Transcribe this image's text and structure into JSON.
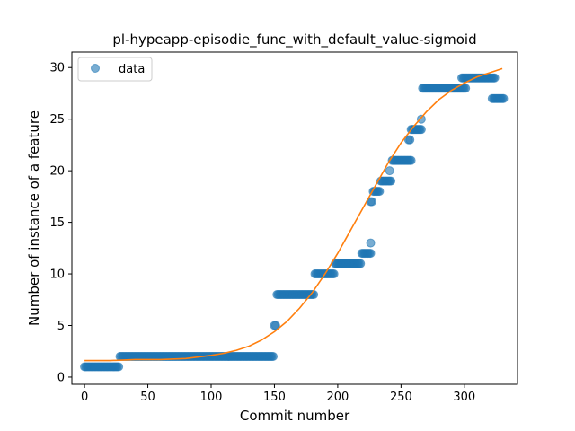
{
  "chart_data": {
    "type": "scatter",
    "title": "pl-hypeapp-episodie_func_with_default_value-sigmoid",
    "xlabel": "Commit number",
    "ylabel": "Number of instance of a feature",
    "xlim": [
      -10,
      342
    ],
    "ylim": [
      -0.7,
      31.5
    ],
    "xticks": [
      0,
      50,
      100,
      150,
      200,
      250,
      300
    ],
    "yticks": [
      0,
      5,
      10,
      15,
      20,
      25,
      30
    ],
    "grid": false,
    "legend": {
      "position": "top-left",
      "entries": [
        "data"
      ]
    },
    "colors": {
      "data": "#1f77b4",
      "fit": "#ff7f0e"
    },
    "series": [
      {
        "name": "data",
        "style": "markers",
        "runs": [
          {
            "x_start": 0,
            "x_end": 27,
            "step": 1,
            "y": 1
          },
          {
            "x_start": 28,
            "x_end": 149,
            "step": 1,
            "y": 2
          },
          {
            "x_start": 150,
            "x_end": 151,
            "step": 1,
            "y": 5
          },
          {
            "x_start": 152,
            "x_end": 181,
            "step": 1,
            "y": 8
          },
          {
            "x_start": 182,
            "x_end": 197,
            "step": 1,
            "y": 10
          },
          {
            "x_start": 198,
            "x_end": 218,
            "step": 1,
            "y": 11
          },
          {
            "x_start": 219,
            "x_end": 226,
            "step": 1,
            "y": 12
          },
          {
            "x_start": 226,
            "x_end": 226,
            "step": 1,
            "y": 13
          },
          {
            "x_start": 226,
            "x_end": 227,
            "step": 1,
            "y": 17
          },
          {
            "x_start": 228,
            "x_end": 233,
            "step": 1,
            "y": 18
          },
          {
            "x_start": 234,
            "x_end": 242,
            "step": 1,
            "y": 19
          },
          {
            "x_start": 241,
            "x_end": 241,
            "step": 1,
            "y": 20
          },
          {
            "x_start": 243,
            "x_end": 258,
            "step": 1,
            "y": 21
          },
          {
            "x_start": 256,
            "x_end": 257,
            "step": 1,
            "y": 23
          },
          {
            "x_start": 258,
            "x_end": 266,
            "step": 1,
            "y": 24
          },
          {
            "x_start": 266,
            "x_end": 266,
            "step": 1,
            "y": 25
          },
          {
            "x_start": 267,
            "x_end": 301,
            "step": 1,
            "y": 28
          },
          {
            "x_start": 298,
            "x_end": 324,
            "step": 1,
            "y": 29
          },
          {
            "x_start": 322,
            "x_end": 331,
            "step": 1,
            "y": 27
          }
        ]
      },
      {
        "name": "",
        "style": "line",
        "x": [
          0,
          20,
          40,
          60,
          80,
          100,
          110,
          120,
          130,
          140,
          150,
          160,
          170,
          180,
          190,
          200,
          210,
          220,
          230,
          240,
          250,
          260,
          270,
          280,
          290,
          300,
          310,
          320,
          330
        ],
        "y": [
          1.6,
          1.6,
          1.7,
          1.7,
          1.8,
          2.1,
          2.3,
          2.6,
          3.0,
          3.6,
          4.4,
          5.4,
          6.7,
          8.2,
          10.0,
          12.0,
          14.2,
          16.4,
          18.6,
          20.8,
          22.7,
          24.3,
          25.7,
          26.9,
          27.8,
          28.5,
          29.1,
          29.5,
          29.9
        ]
      }
    ]
  }
}
